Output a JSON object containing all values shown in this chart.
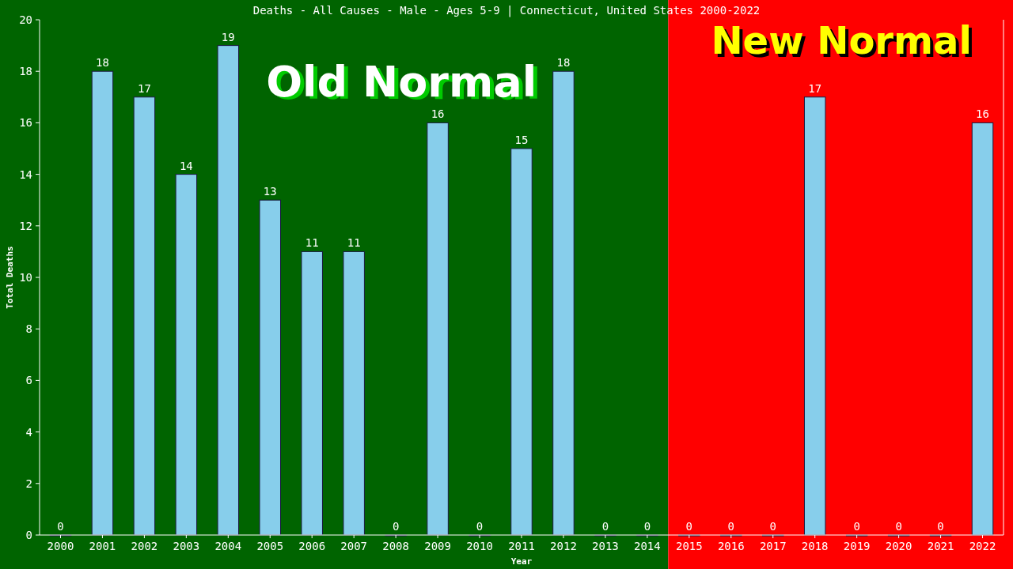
{
  "chart_data": {
    "type": "bar",
    "title": "Deaths - All Causes - Male - Ages 5-9 | Connecticut, United States 2000-2022",
    "xlabel": "Year",
    "ylabel": "Total Deaths",
    "categories": [
      "2000",
      "2001",
      "2002",
      "2003",
      "2004",
      "2005",
      "2006",
      "2007",
      "2008",
      "2009",
      "2010",
      "2011",
      "2012",
      "2013",
      "2014",
      "2015",
      "2016",
      "2017",
      "2018",
      "2019",
      "2020",
      "2021",
      "2022"
    ],
    "values": [
      0,
      18,
      17,
      14,
      19,
      13,
      11,
      11,
      0,
      16,
      0,
      15,
      18,
      0,
      0,
      0,
      0,
      0,
      17,
      0,
      0,
      0,
      16
    ],
    "color": "#87ceeb",
    "ylim": [
      0,
      20
    ],
    "yticks": [
      0,
      2,
      4,
      6,
      8,
      10,
      12,
      14,
      16,
      18,
      20
    ],
    "grid": false,
    "data_labels": true,
    "bands": [
      {
        "axis": "x",
        "from": "2000",
        "to": "2014",
        "label": "Old Normal",
        "color": "#006400"
      },
      {
        "axis": "x",
        "from": "2015",
        "to": "2022",
        "label": "New Normal",
        "color": "#ff0000"
      }
    ]
  }
}
